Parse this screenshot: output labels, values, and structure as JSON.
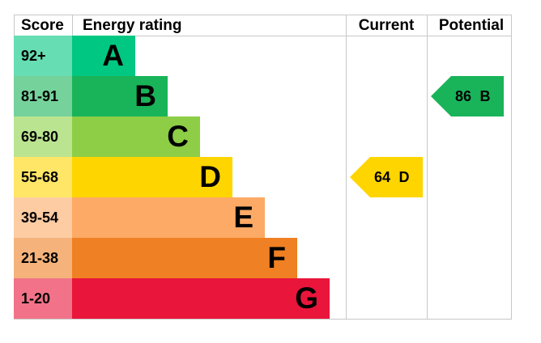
{
  "header": {
    "score": "Score",
    "rating": "Energy rating",
    "current": "Current",
    "potential": "Potential"
  },
  "rows": [
    {
      "score": "92+",
      "rating": "A",
      "color": "#00c781",
      "score_color": "#66ddb3"
    },
    {
      "score": "81-91",
      "rating": "B",
      "color": "#19b459",
      "score_color": "#75d29b"
    },
    {
      "score": "69-80",
      "rating": "C",
      "color": "#8dce46",
      "score_color": "#bbe490"
    },
    {
      "score": "55-68",
      "rating": "D",
      "color": "#ffd500",
      "score_color": "#ffe666"
    },
    {
      "score": "39-54",
      "rating": "E",
      "color": "#fcaa65",
      "score_color": "#fdcca3"
    },
    {
      "score": "21-38",
      "rating": "F",
      "color": "#ef8023",
      "score_color": "#f5b37b"
    },
    {
      "score": "1-20",
      "rating": "G",
      "color": "#e9153b",
      "score_color": "#f27389"
    }
  ],
  "current": {
    "value": 64,
    "rating": "D"
  },
  "potential": {
    "value": 86,
    "rating": "B"
  }
}
